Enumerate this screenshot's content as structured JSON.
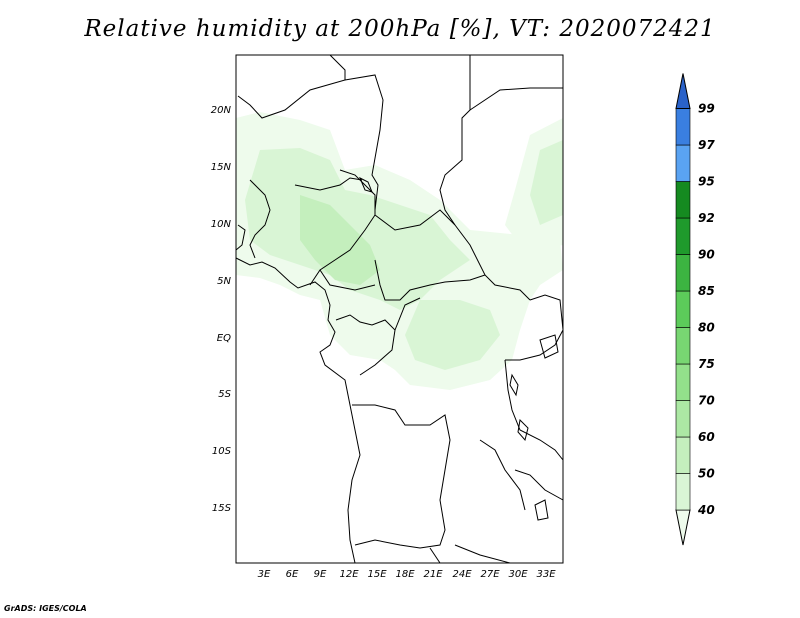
{
  "title": "Relative humidity at 200hPa [%], VT: 2020072421",
  "credit": "GrADS: IGES/COLA",
  "map": {
    "lat_labels": [
      "20N",
      "15N",
      "10N",
      "5N",
      "EQ",
      "5S",
      "10S",
      "15S"
    ],
    "lon_labels": [
      "3E",
      "6E",
      "9E",
      "12E",
      "15E",
      "18E",
      "21E",
      "24E",
      "27E",
      "30E",
      "33E"
    ]
  },
  "colorbar": {
    "levels": [
      "40",
      "50",
      "60",
      "70",
      "75",
      "80",
      "85",
      "90",
      "92",
      "95",
      "97",
      "99"
    ],
    "colors": [
      "#eefbec",
      "#d9f5d5",
      "#c4efbd",
      "#ace8a4",
      "#93e08b",
      "#78d672",
      "#5ccb5a",
      "#3cb441",
      "#1f9a2c",
      "#158a20",
      "#5aa3f2",
      "#3a7fe0",
      "#2a62c9"
    ]
  }
}
